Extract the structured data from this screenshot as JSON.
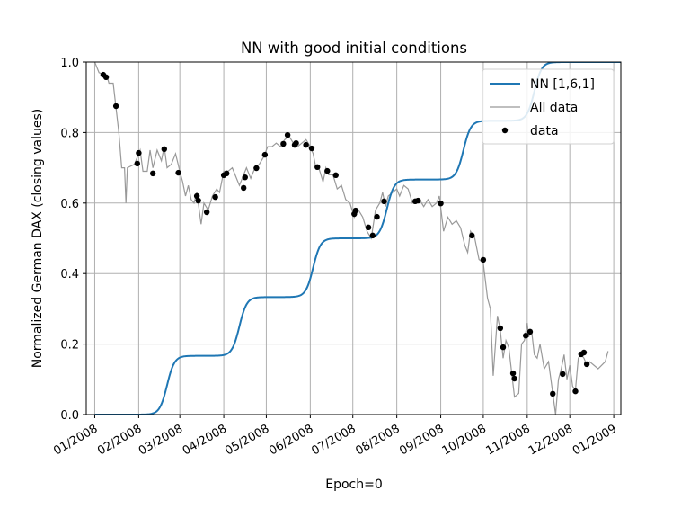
{
  "chart_data": {
    "type": "line",
    "title": "NN with good initial conditions",
    "xlabel": "Epoch=0",
    "ylabel": "Normalized German DAX (closing values)",
    "xlim": [
      "2007-12-26",
      "2009-01-06"
    ],
    "ylim": [
      0.0,
      1.0
    ],
    "grid": true,
    "legend_position": "top-right",
    "x_tick_labels": [
      "01/2008",
      "02/2008",
      "03/2008",
      "04/2008",
      "05/2008",
      "06/2008",
      "07/2008",
      "08/2008",
      "09/2008",
      "10/2008",
      "11/2008",
      "12/2008",
      "01/2009"
    ],
    "x_ticks": [
      "2008-01-01",
      "2008-02-01",
      "2008-03-01",
      "2008-04-01",
      "2008-05-01",
      "2008-06-01",
      "2008-07-01",
      "2008-08-01",
      "2008-09-01",
      "2008-10-01",
      "2008-11-01",
      "2008-12-01",
      "2009-01-01"
    ],
    "y_ticks": [
      0.0,
      0.2,
      0.4,
      0.6,
      0.8,
      1.0
    ],
    "y_tick_labels": [
      "0.0",
      "0.2",
      "0.4",
      "0.6",
      "0.8",
      "1.0"
    ],
    "colors": {
      "nn": "#1f77b4",
      "all_data": "#999999",
      "data": "#000000"
    },
    "series": [
      {
        "name": "NN [1,6,1]",
        "kind": "sigmoid-steps",
        "step_centers": [
          "2008-02-21",
          "2008-04-12",
          "2008-06-03",
          "2008-07-25",
          "2008-09-17",
          "2008-11-06"
        ],
        "levels": [
          0.0,
          0.1667,
          0.3333,
          0.5,
          0.6667,
          0.8333,
          1.0
        ]
      },
      {
        "name": "All data",
        "points": [
          [
            "2008-01-01",
            1.0
          ],
          [
            "2008-01-04",
            0.97
          ],
          [
            "2008-01-07",
            0.965
          ],
          [
            "2008-01-10",
            0.955
          ],
          [
            "2008-01-11",
            0.94
          ],
          [
            "2008-01-14",
            0.94
          ],
          [
            "2008-01-16",
            0.87
          ],
          [
            "2008-01-18",
            0.8
          ],
          [
            "2008-01-20",
            0.7
          ],
          [
            "2008-01-22",
            0.7
          ],
          [
            "2008-01-23",
            0.6
          ],
          [
            "2008-01-24",
            0.7
          ],
          [
            "2008-01-29",
            0.71
          ],
          [
            "2008-01-31",
            0.73
          ],
          [
            "2008-02-02",
            0.75
          ],
          [
            "2008-02-04",
            0.69
          ],
          [
            "2008-02-07",
            0.69
          ],
          [
            "2008-02-09",
            0.75
          ],
          [
            "2008-02-11",
            0.7
          ],
          [
            "2008-02-14",
            0.75
          ],
          [
            "2008-02-17",
            0.72
          ],
          [
            "2008-02-19",
            0.76
          ],
          [
            "2008-02-21",
            0.7
          ],
          [
            "2008-02-24",
            0.71
          ],
          [
            "2008-02-27",
            0.74
          ],
          [
            "2008-03-01",
            0.69
          ],
          [
            "2008-03-03",
            0.66
          ],
          [
            "2008-03-05",
            0.62
          ],
          [
            "2008-03-07",
            0.65
          ],
          [
            "2008-03-09",
            0.61
          ],
          [
            "2008-03-11",
            0.6
          ],
          [
            "2008-03-13",
            0.63
          ],
          [
            "2008-03-16",
            0.54
          ],
          [
            "2008-03-18",
            0.6
          ],
          [
            "2008-03-21",
            0.58
          ],
          [
            "2008-03-24",
            0.62
          ],
          [
            "2008-03-27",
            0.64
          ],
          [
            "2008-03-29",
            0.63
          ],
          [
            "2008-04-01",
            0.69
          ],
          [
            "2008-04-04",
            0.69
          ],
          [
            "2008-04-07",
            0.7
          ],
          [
            "2008-04-10",
            0.67
          ],
          [
            "2008-04-12",
            0.65
          ],
          [
            "2008-04-15",
            0.68
          ],
          [
            "2008-04-17",
            0.7
          ],
          [
            "2008-04-20",
            0.67
          ],
          [
            "2008-04-23",
            0.7
          ],
          [
            "2008-04-26",
            0.71
          ],
          [
            "2008-04-29",
            0.73
          ],
          [
            "2008-05-02",
            0.76
          ],
          [
            "2008-05-05",
            0.76
          ],
          [
            "2008-05-08",
            0.77
          ],
          [
            "2008-05-11",
            0.76
          ],
          [
            "2008-05-14",
            0.78
          ],
          [
            "2008-05-17",
            0.79
          ],
          [
            "2008-05-20",
            0.77
          ],
          [
            "2008-05-23",
            0.76
          ],
          [
            "2008-05-26",
            0.77
          ],
          [
            "2008-05-29",
            0.78
          ],
          [
            "2008-06-01",
            0.76
          ],
          [
            "2008-06-03",
            0.74
          ],
          [
            "2008-06-05",
            0.7
          ],
          [
            "2008-06-07",
            0.7
          ],
          [
            "2008-06-10",
            0.66
          ],
          [
            "2008-06-12",
            0.7
          ],
          [
            "2008-06-14",
            0.68
          ],
          [
            "2008-06-17",
            0.68
          ],
          [
            "2008-06-20",
            0.64
          ],
          [
            "2008-06-23",
            0.65
          ],
          [
            "2008-06-26",
            0.61
          ],
          [
            "2008-06-29",
            0.6
          ],
          [
            "2008-07-02",
            0.56
          ],
          [
            "2008-07-05",
            0.58
          ],
          [
            "2008-07-08",
            0.56
          ],
          [
            "2008-07-11",
            0.52
          ],
          [
            "2008-07-14",
            0.5
          ],
          [
            "2008-07-17",
            0.58
          ],
          [
            "2008-07-20",
            0.6
          ],
          [
            "2008-07-22",
            0.63
          ],
          [
            "2008-07-24",
            0.59
          ],
          [
            "2008-07-26",
            0.62
          ],
          [
            "2008-07-29",
            0.63
          ],
          [
            "2008-08-01",
            0.64
          ],
          [
            "2008-08-03",
            0.62
          ],
          [
            "2008-08-06",
            0.65
          ],
          [
            "2008-08-09",
            0.64
          ],
          [
            "2008-08-12",
            0.6
          ],
          [
            "2008-08-14",
            0.61
          ],
          [
            "2008-08-17",
            0.61
          ],
          [
            "2008-08-20",
            0.59
          ],
          [
            "2008-08-23",
            0.61
          ],
          [
            "2008-08-26",
            0.59
          ],
          [
            "2008-08-29",
            0.6
          ],
          [
            "2008-08-31",
            0.62
          ],
          [
            "2008-09-03",
            0.52
          ],
          [
            "2008-09-06",
            0.56
          ],
          [
            "2008-09-09",
            0.54
          ],
          [
            "2008-09-12",
            0.55
          ],
          [
            "2008-09-15",
            0.53
          ],
          [
            "2008-09-18",
            0.48
          ],
          [
            "2008-09-20",
            0.46
          ],
          [
            "2008-09-22",
            0.52
          ],
          [
            "2008-09-25",
            0.5
          ],
          [
            "2008-09-28",
            0.44
          ],
          [
            "2008-10-01",
            0.43
          ],
          [
            "2008-10-04",
            0.33
          ],
          [
            "2008-10-06",
            0.3
          ],
          [
            "2008-10-08",
            0.11
          ],
          [
            "2008-10-11",
            0.28
          ],
          [
            "2008-10-13",
            0.24
          ],
          [
            "2008-10-15",
            0.16
          ],
          [
            "2008-10-17",
            0.21
          ],
          [
            "2008-10-19",
            0.19
          ],
          [
            "2008-10-21",
            0.12
          ],
          [
            "2008-10-23",
            0.05
          ],
          [
            "2008-10-26",
            0.06
          ],
          [
            "2008-10-28",
            0.2
          ],
          [
            "2008-10-30",
            0.21
          ],
          [
            "2008-11-01",
            0.26
          ],
          [
            "2008-11-02",
            0.22
          ],
          [
            "2008-11-04",
            0.24
          ],
          [
            "2008-11-06",
            0.17
          ],
          [
            "2008-11-08",
            0.16
          ],
          [
            "2008-11-10",
            0.2
          ],
          [
            "2008-11-13",
            0.13
          ],
          [
            "2008-11-16",
            0.15
          ],
          [
            "2008-11-19",
            0.06
          ],
          [
            "2008-11-21",
            0.0
          ],
          [
            "2008-11-23",
            0.1
          ],
          [
            "2008-11-25",
            0.13
          ],
          [
            "2008-11-27",
            0.17
          ],
          [
            "2008-11-29",
            0.1
          ],
          [
            "2008-12-01",
            0.14
          ],
          [
            "2008-12-03",
            0.08
          ],
          [
            "2008-12-05",
            0.07
          ],
          [
            "2008-12-07",
            0.16
          ],
          [
            "2008-12-09",
            0.17
          ],
          [
            "2008-12-11",
            0.16
          ],
          [
            "2008-12-13",
            0.14
          ],
          [
            "2008-12-15",
            0.15
          ],
          [
            "2008-12-18",
            0.14
          ],
          [
            "2008-12-21",
            0.13
          ],
          [
            "2008-12-26",
            0.15
          ],
          [
            "2008-12-28",
            0.18
          ]
        ]
      },
      {
        "name": "data",
        "points": [
          [
            "2008-01-07",
            0.964
          ],
          [
            "2008-01-09",
            0.957
          ],
          [
            "2008-01-16",
            0.875
          ],
          [
            "2008-01-31",
            0.712
          ],
          [
            "2008-02-01",
            0.742
          ],
          [
            "2008-02-11",
            0.684
          ],
          [
            "2008-02-19",
            0.753
          ],
          [
            "2008-02-29",
            0.686
          ],
          [
            "2008-03-13",
            0.62
          ],
          [
            "2008-03-14",
            0.607
          ],
          [
            "2008-03-20",
            0.574
          ],
          [
            "2008-03-26",
            0.617
          ],
          [
            "2008-04-01",
            0.679
          ],
          [
            "2008-04-03",
            0.684
          ],
          [
            "2008-04-15",
            0.643
          ],
          [
            "2008-04-16",
            0.673
          ],
          [
            "2008-04-24",
            0.699
          ],
          [
            "2008-04-30",
            0.737
          ],
          [
            "2008-05-13",
            0.768
          ],
          [
            "2008-05-16",
            0.793
          ],
          [
            "2008-05-21",
            0.765
          ],
          [
            "2008-05-22",
            0.77
          ],
          [
            "2008-05-29",
            0.765
          ],
          [
            "2008-06-02",
            0.755
          ],
          [
            "2008-06-06",
            0.702
          ],
          [
            "2008-06-13",
            0.691
          ],
          [
            "2008-06-19",
            0.679
          ],
          [
            "2008-07-02",
            0.569
          ],
          [
            "2008-07-03",
            0.579
          ],
          [
            "2008-07-12",
            0.531
          ],
          [
            "2008-07-15",
            0.508
          ],
          [
            "2008-07-18",
            0.561
          ],
          [
            "2008-07-23",
            0.605
          ],
          [
            "2008-08-14",
            0.605
          ],
          [
            "2008-08-16",
            0.607
          ],
          [
            "2008-09-01",
            0.599
          ],
          [
            "2008-09-23",
            0.508
          ],
          [
            "2008-10-01",
            0.439
          ],
          [
            "2008-10-13",
            0.245
          ],
          [
            "2008-10-15",
            0.191
          ],
          [
            "2008-10-22",
            0.117
          ],
          [
            "2008-10-23",
            0.102
          ],
          [
            "2008-10-31",
            0.224
          ],
          [
            "2008-11-03",
            0.235
          ],
          [
            "2008-11-19",
            0.059
          ],
          [
            "2008-11-26",
            0.115
          ],
          [
            "2008-12-05",
            0.066
          ],
          [
            "2008-12-09",
            0.171
          ],
          [
            "2008-12-11",
            0.176
          ],
          [
            "2008-12-13",
            0.143
          ]
        ]
      }
    ]
  }
}
